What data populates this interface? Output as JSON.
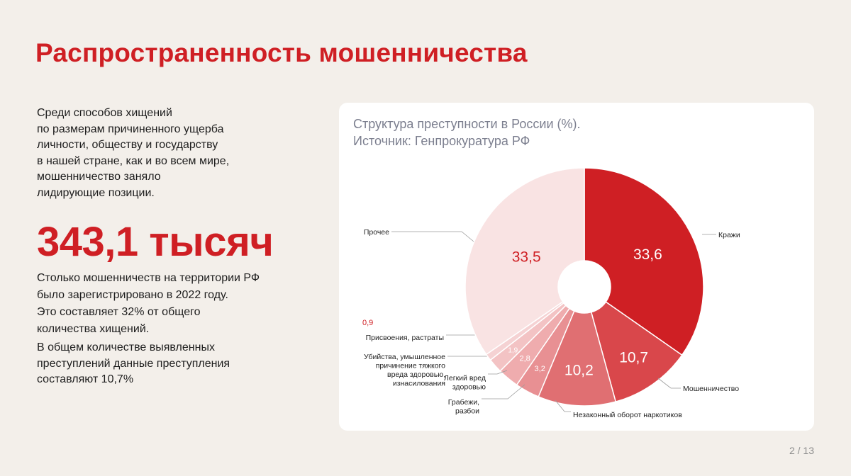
{
  "title": "Распространенность мошенничества",
  "intro": "Среди способов хищений\nпо размерам причиненного ущерба\nличности, обществу и государству\nв нашей стране, как и во всем мире,\nмошенничество заняло\nлидирующие позиции.",
  "big_number": "343,1 тысяч",
  "stat_text": "Столько мошенничеств на территории РФ\nбыло зарегистрировано в 2022 году.\nЭто составляет 32% от общего\nколичества хищений.",
  "stat_text2": "В общем количестве выявленных\nпреступлений данные преступления\nсоставляют 10,7%",
  "page_counter": "2 / 13",
  "chart_data": {
    "type": "pie",
    "title": "Структура преступности в России (%).\nИсточник: Генпрокуратура РФ",
    "series": [
      {
        "label": "Кражи",
        "value": 33.6,
        "value_label": "33,6",
        "color": "#cf1f24"
      },
      {
        "label": "Мошенничество",
        "value": 10.7,
        "value_label": "10,7",
        "color": "#d9474b"
      },
      {
        "label": "Незаконный оборот наркотиков",
        "value": 10.2,
        "value_label": "10,2",
        "color": "#e06f72"
      },
      {
        "label": "Грабежи,\nразбои",
        "value": 3.2,
        "value_label": "3,2",
        "color": "#e89093"
      },
      {
        "label": "Легкий вред\nздоровью",
        "value": 2.8,
        "value_label": "2,8",
        "color": "#efacae"
      },
      {
        "label": "Убийства, умышленное\nпричинение тяжкого\nвреда здоровью,\nизнасилования",
        "value": 1.9,
        "value_label": "1,9",
        "color": "#f3c3c4"
      },
      {
        "label": "Присвоения, растраты",
        "value": 0.9,
        "value_label": "0,9",
        "color": "#f5d2d3"
      },
      {
        "label": "Прочее",
        "value": 33.5,
        "value_label": "33,5",
        "color": "#f9e3e3"
      }
    ]
  }
}
